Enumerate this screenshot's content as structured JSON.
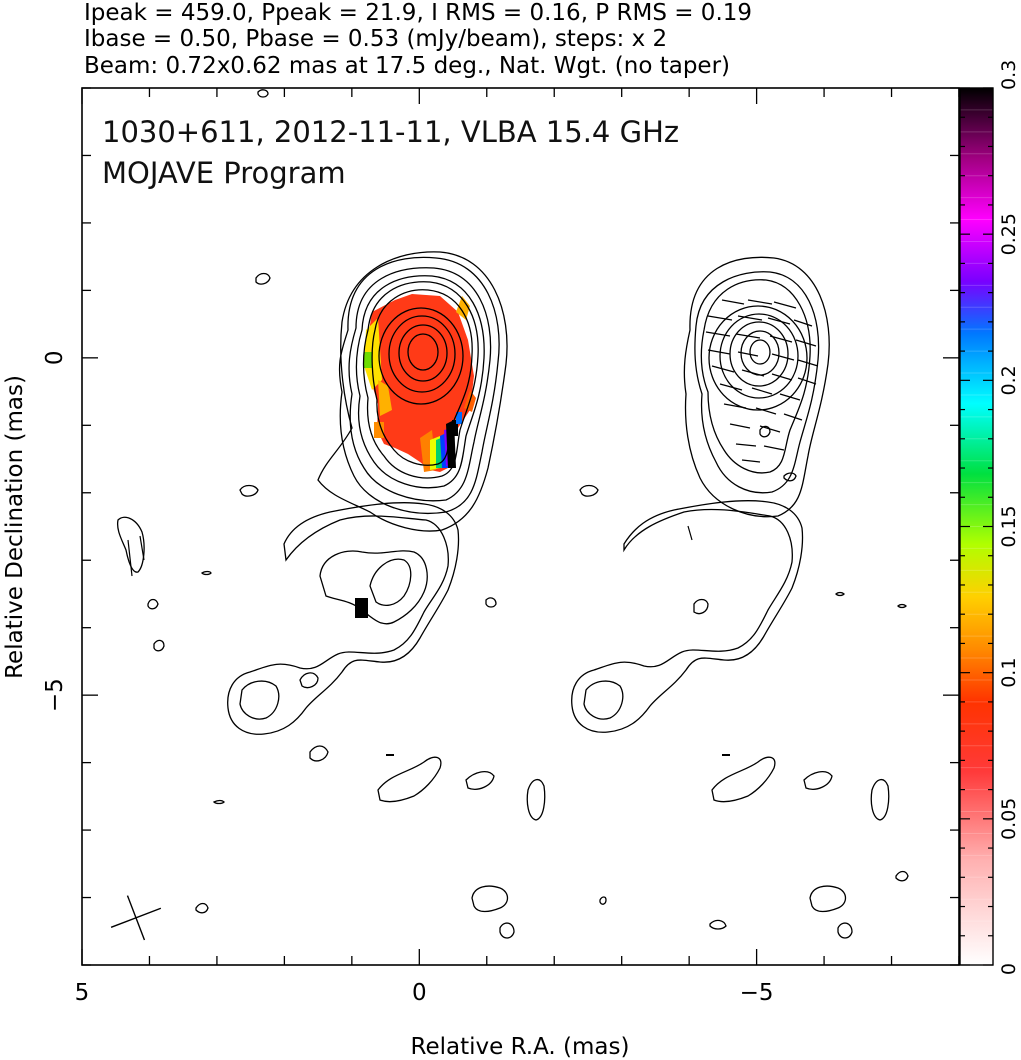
{
  "header": {
    "line1": "Ipeak = 459.0, Ppeak = 21.9, I RMS = 0.16, P RMS = 0.19",
    "line2": "Ibase = 0.50, Pbase = 0.53 (mJy/beam), steps: x 2",
    "line3": "Beam: 0.72x0.62 mas at 17.5 deg., Nat. Wgt. (no taper)"
  },
  "chart_data": {
    "type": "heatmap",
    "title": "1030+611, 2012-11-11, VLBA 15.4 GHz",
    "subtitle": "MOJAVE Program",
    "xlabel": "Relative R.A. (mas)",
    "ylabel": "Relative Declination (mas)",
    "xlim": [
      5,
      -8
    ],
    "ylim": [
      -9,
      4
    ],
    "x_ticks": [
      {
        "value": 5,
        "label": "5"
      },
      {
        "value": 0,
        "label": "0"
      },
      {
        "value": -5,
        "label": "−5"
      }
    ],
    "y_ticks": [
      {
        "value": 0,
        "label": "0"
      },
      {
        "value": -5,
        "label": "−5"
      }
    ],
    "colorbar": {
      "min": 0,
      "max": 0.3,
      "ticks": [
        {
          "value": 0,
          "label": "0"
        },
        {
          "value": 0.05,
          "label": "0.05"
        },
        {
          "value": 0.1,
          "label": "0.1"
        },
        {
          "value": 0.15,
          "label": "0.15"
        },
        {
          "value": 0.2,
          "label": "0.2"
        },
        {
          "value": 0.25,
          "label": "0.25"
        },
        {
          "value": 0.3,
          "label": "0.3"
        }
      ]
    },
    "beam": {
      "major_mas": 0.72,
      "minor_mas": 0.62,
      "pa_deg": 17.5,
      "center": [
        4.2,
        -8.3
      ]
    },
    "i_peak_mjy_per_beam": 459.0,
    "p_peak_mjy_per_beam": 21.9,
    "i_rms": 0.16,
    "p_rms": 0.19,
    "i_base": 0.5,
    "p_base": 0.53,
    "contour_step_factor": 2,
    "left_panel_core_offset": [
      0,
      0
    ],
    "right_panel_core_offset": [
      -5,
      0
    ]
  }
}
